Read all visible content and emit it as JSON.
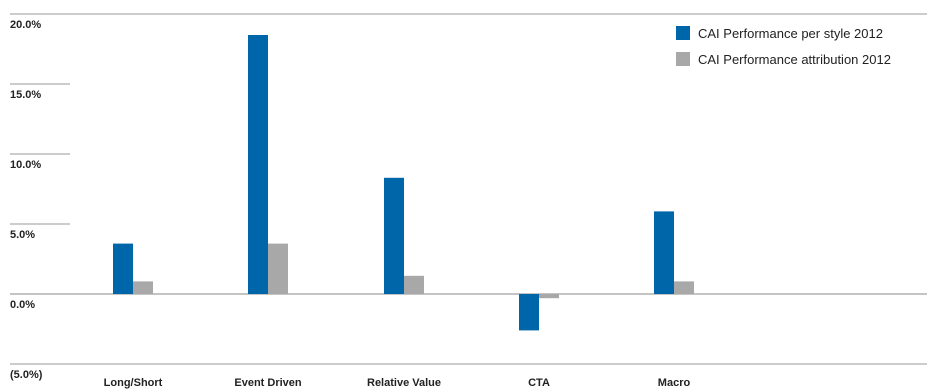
{
  "chart_data": {
    "type": "bar",
    "categories": [
      "Long/Short",
      "Event Driven",
      "Relative Value",
      "CTA",
      "Macro"
    ],
    "series": [
      {
        "name": "CAI Performance per style 2012",
        "color": "#0066aa",
        "values": [
          3.6,
          18.5,
          8.3,
          -2.6,
          5.9
        ]
      },
      {
        "name": "CAI Performance attribution 2012",
        "color": "#a8a8a8",
        "values": [
          0.9,
          3.6,
          1.3,
          -0.3,
          0.9
        ]
      }
    ],
    "ylim": [
      -5,
      20
    ],
    "yticks": [
      20,
      15,
      10,
      5,
      0,
      -5
    ],
    "ytick_labels": [
      "20.0%",
      "15.0%",
      "10.0%",
      "5.0%",
      "0.0%",
      "(5.0%)"
    ],
    "grid": "horizontal",
    "legend_position": "top-right",
    "title": "",
    "xlabel": "",
    "ylabel": ""
  }
}
